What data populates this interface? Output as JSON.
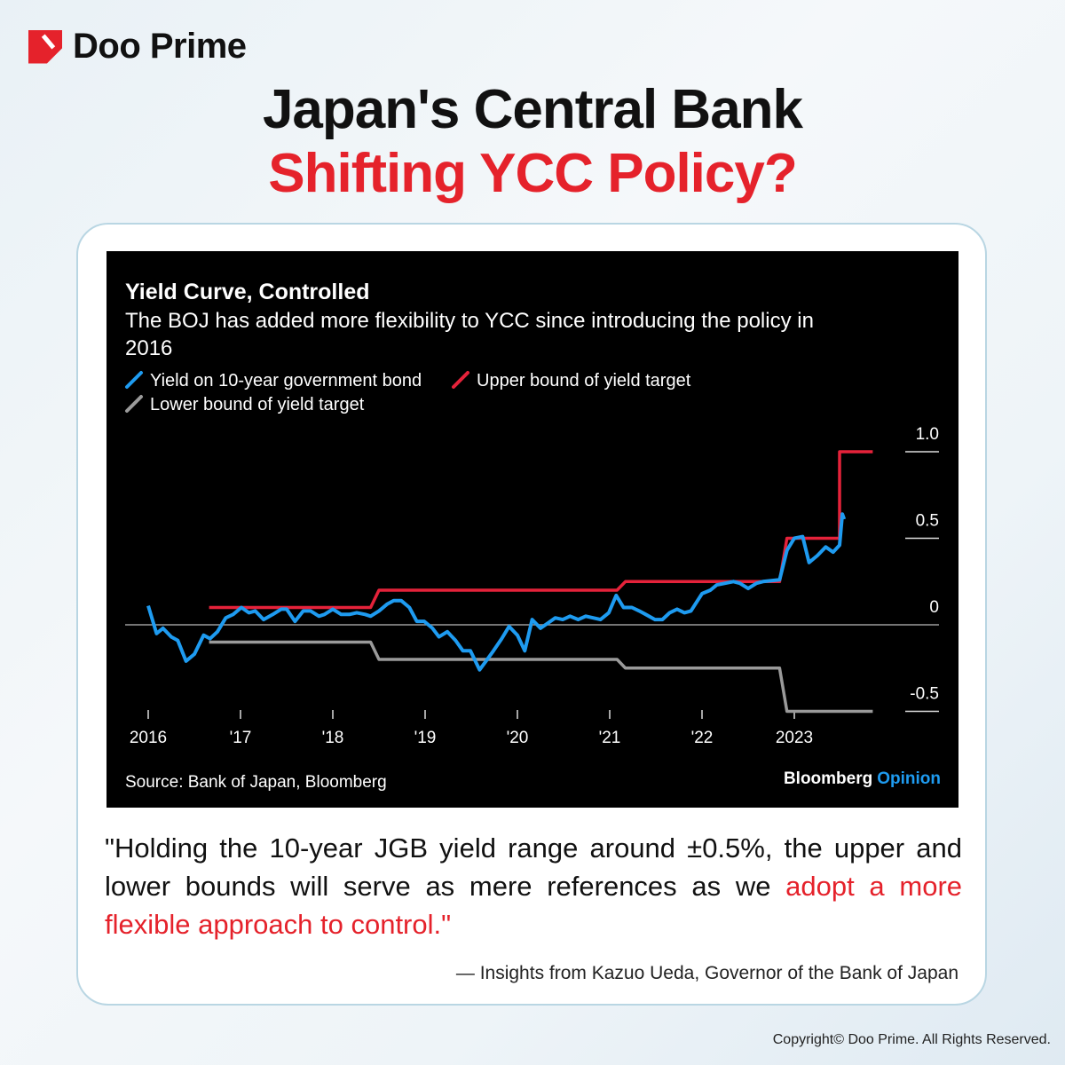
{
  "brand": {
    "name": "Doo Prime",
    "color": "#e5222b"
  },
  "headline": {
    "line1": "Japan's Central Bank",
    "line2": "Shifting YCC Policy?"
  },
  "chart_data": {
    "type": "line",
    "title": "Yield Curve, Controlled",
    "subtitle_line1": "The BOJ has added more flexibility to YCC since introducing the policy in",
    "subtitle_line2": "2016",
    "source": "Source: Bank of Japan, Bloomberg",
    "credit": {
      "main": "Bloomberg",
      "accent": "Opinion"
    },
    "x_ticks": [
      {
        "x": 2016,
        "label": "2016"
      },
      {
        "x": 2017,
        "label": "'17"
      },
      {
        "x": 2018,
        "label": "'18"
      },
      {
        "x": 2019,
        "label": "'19"
      },
      {
        "x": 2020,
        "label": "'20"
      },
      {
        "x": 2021,
        "label": "'21"
      },
      {
        "x": 2022,
        "label": "'22"
      },
      {
        "x": 2023,
        "label": "2023"
      }
    ],
    "y_ticks": [
      {
        "y": 1.0,
        "label": "1.0"
      },
      {
        "y": 0.5,
        "label": "0.5"
      },
      {
        "y": 0,
        "label": "0"
      },
      {
        "y": -0.5,
        "label": "-0.5"
      }
    ],
    "ylim": [
      -0.5,
      1.0
    ],
    "xlim": [
      2016,
      2024
    ],
    "legend_placement": "top-left",
    "series": [
      {
        "name": "Yield on 10-year government bond",
        "color": "#1e9bf0",
        "points": [
          [
            2016.0,
            0.11
          ],
          [
            2016.09,
            -0.05
          ],
          [
            2016.16,
            -0.02
          ],
          [
            2016.25,
            -0.07
          ],
          [
            2016.32,
            -0.09
          ],
          [
            2016.41,
            -0.21
          ],
          [
            2016.5,
            -0.17
          ],
          [
            2016.6,
            -0.06
          ],
          [
            2016.67,
            -0.08
          ],
          [
            2016.75,
            -0.04
          ],
          [
            2016.84,
            0.04
          ],
          [
            2016.92,
            0.06
          ],
          [
            2017.01,
            0.1
          ],
          [
            2017.09,
            0.07
          ],
          [
            2017.16,
            0.08
          ],
          [
            2017.25,
            0.03
          ],
          [
            2017.35,
            0.06
          ],
          [
            2017.44,
            0.09
          ],
          [
            2017.5,
            0.09
          ],
          [
            2017.59,
            0.02
          ],
          [
            2017.68,
            0.08
          ],
          [
            2017.76,
            0.08
          ],
          [
            2017.85,
            0.05
          ],
          [
            2017.91,
            0.06
          ],
          [
            2018.0,
            0.09
          ],
          [
            2018.09,
            0.06
          ],
          [
            2018.18,
            0.06
          ],
          [
            2018.26,
            0.07
          ],
          [
            2018.35,
            0.06
          ],
          [
            2018.41,
            0.05
          ],
          [
            2018.5,
            0.08
          ],
          [
            2018.59,
            0.12
          ],
          [
            2018.66,
            0.14
          ],
          [
            2018.74,
            0.14
          ],
          [
            2018.83,
            0.1
          ],
          [
            2018.91,
            0.02
          ],
          [
            2018.99,
            0.02
          ],
          [
            2019.08,
            -0.02
          ],
          [
            2019.15,
            -0.07
          ],
          [
            2019.24,
            -0.04
          ],
          [
            2019.33,
            -0.09
          ],
          [
            2019.41,
            -0.15
          ],
          [
            2019.49,
            -0.15
          ],
          [
            2019.59,
            -0.26
          ],
          [
            2019.66,
            -0.21
          ],
          [
            2019.74,
            -0.15
          ],
          [
            2019.83,
            -0.08
          ],
          [
            2019.91,
            -0.01
          ],
          [
            2020.0,
            -0.06
          ],
          [
            2020.08,
            -0.15
          ],
          [
            2020.16,
            0.03
          ],
          [
            2020.25,
            -0.02
          ],
          [
            2020.33,
            0.01
          ],
          [
            2020.41,
            0.04
          ],
          [
            2020.49,
            0.03
          ],
          [
            2020.57,
            0.05
          ],
          [
            2020.66,
            0.03
          ],
          [
            2020.74,
            0.05
          ],
          [
            2020.82,
            0.04
          ],
          [
            2020.9,
            0.03
          ],
          [
            2020.99,
            0.07
          ],
          [
            2021.07,
            0.17
          ],
          [
            2021.15,
            0.1
          ],
          [
            2021.24,
            0.1
          ],
          [
            2021.32,
            0.08
          ],
          [
            2021.39,
            0.06
          ],
          [
            2021.49,
            0.03
          ],
          [
            2021.57,
            0.03
          ],
          [
            2021.65,
            0.07
          ],
          [
            2021.73,
            0.09
          ],
          [
            2021.81,
            0.07
          ],
          [
            2021.88,
            0.08
          ],
          [
            2022.0,
            0.18
          ],
          [
            2022.09,
            0.2
          ],
          [
            2022.16,
            0.23
          ],
          [
            2022.25,
            0.24
          ],
          [
            2022.34,
            0.25
          ],
          [
            2022.41,
            0.24
          ],
          [
            2022.5,
            0.21
          ],
          [
            2022.59,
            0.24
          ],
          [
            2022.66,
            0.25
          ],
          [
            2022.84,
            0.26
          ],
          [
            2022.92,
            0.43
          ],
          [
            2023.0,
            0.5
          ],
          [
            2023.09,
            0.51
          ],
          [
            2023.16,
            0.36
          ],
          [
            2023.25,
            0.4
          ],
          [
            2023.34,
            0.45
          ],
          [
            2023.42,
            0.42
          ],
          [
            2023.49,
            0.46
          ],
          [
            2023.52,
            0.64
          ],
          [
            2023.54,
            0.61
          ]
        ]
      },
      {
        "name": "Upper bound of yield target",
        "color": "#e5223a",
        "points": [
          [
            2016.66,
            0.1
          ],
          [
            2018.41,
            0.1
          ],
          [
            2018.5,
            0.2
          ],
          [
            2021.08,
            0.2
          ],
          [
            2021.17,
            0.25
          ],
          [
            2022.84,
            0.25
          ],
          [
            2022.92,
            0.5
          ],
          [
            2023.49,
            0.5
          ],
          [
            2023.49,
            1.0
          ],
          [
            2023.85,
            1.0
          ]
        ]
      },
      {
        "name": "Lower bound of yield target",
        "color": "#9a9a9a",
        "points": [
          [
            2016.66,
            -0.1
          ],
          [
            2018.41,
            -0.1
          ],
          [
            2018.5,
            -0.2
          ],
          [
            2021.08,
            -0.2
          ],
          [
            2021.17,
            -0.25
          ],
          [
            2022.84,
            -0.25
          ],
          [
            2022.92,
            -0.5
          ],
          [
            2023.85,
            -0.5
          ]
        ]
      }
    ]
  },
  "quote": {
    "text": "\"Holding the 10-year JGB yield range around ±0.5%, the upper and lower bounds will serve as mere references as we ",
    "highlight": "adopt a more flexible approach to control.\""
  },
  "attribution": "— Insights from Kazuo Ueda, Governor of the Bank of Japan",
  "copyright": "Copyright© Doo Prime. All Rights Reserved."
}
